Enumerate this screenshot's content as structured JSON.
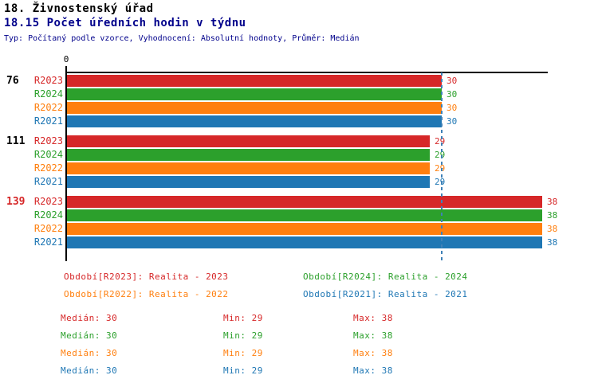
{
  "header": {
    "section_title": "18. Živnostenský úřad",
    "chart_title": "18.15 Počet úředních hodin v týdnu",
    "meta_line": "Typ: Počítaný podle vzorce, Vyhodnocení: Absolutní hodnoty, Průměr: Medián"
  },
  "colors": {
    "title": "#000000",
    "subtitle": "#00008b",
    "axis": "#000000",
    "median_line": "#3f81b7",
    "highlighted_group_label": "#d62728"
  },
  "chart_data": {
    "type": "bar",
    "orientation": "horizontal",
    "title": "18.15 Počet úředních hodin v týdnu",
    "x_axis": {
      "origin_label": "0",
      "min": 0,
      "max": 38.5,
      "grid": false
    },
    "median_marker_value": 30,
    "series_order": [
      "R2023",
      "R2024",
      "R2022",
      "R2021"
    ],
    "series_colors": {
      "R2023": "#d62728",
      "R2024": "#2ca02c",
      "R2022": "#ff7f0e",
      "R2021": "#1f77b4"
    },
    "groups": [
      {
        "label": "76",
        "highlighted": false,
        "values": {
          "R2023": 30,
          "R2024": 30,
          "R2022": 30,
          "R2021": 30
        }
      },
      {
        "label": "111",
        "highlighted": false,
        "values": {
          "R2023": 29,
          "R2024": 29,
          "R2022": 29,
          "R2021": 29
        }
      },
      {
        "label": "139",
        "highlighted": true,
        "values": {
          "R2023": 38,
          "R2024": 38,
          "R2022": 38,
          "R2021": 38
        }
      }
    ]
  },
  "legend": [
    {
      "label": "Období[R2023]: Realita - 2023",
      "series": "R2023",
      "color": "#d62728",
      "row": 0,
      "col": 0
    },
    {
      "label": "Období[R2024]: Realita - 2024",
      "series": "R2024",
      "color": "#2ca02c",
      "row": 0,
      "col": 1
    },
    {
      "label": "Období[R2022]: Realita - 2022",
      "series": "R2022",
      "color": "#ff7f0e",
      "row": 1,
      "col": 0
    },
    {
      "label": "Období[R2021]: Realita - 2021",
      "series": "R2021",
      "color": "#1f77b4",
      "row": 1,
      "col": 1
    }
  ],
  "stat_labels": {
    "median": "Medián",
    "min": "Min",
    "max": "Max"
  },
  "stats": [
    {
      "series": "R2023",
      "color": "#d62728",
      "median": "30",
      "min": "29",
      "max": "38"
    },
    {
      "series": "R2024",
      "color": "#2ca02c",
      "median": "30",
      "min": "29",
      "max": "38"
    },
    {
      "series": "R2022",
      "color": "#ff7f0e",
      "median": "30",
      "min": "29",
      "max": "38"
    },
    {
      "series": "R2021",
      "color": "#1f77b4",
      "median": "30",
      "min": "29",
      "max": "38"
    }
  ]
}
